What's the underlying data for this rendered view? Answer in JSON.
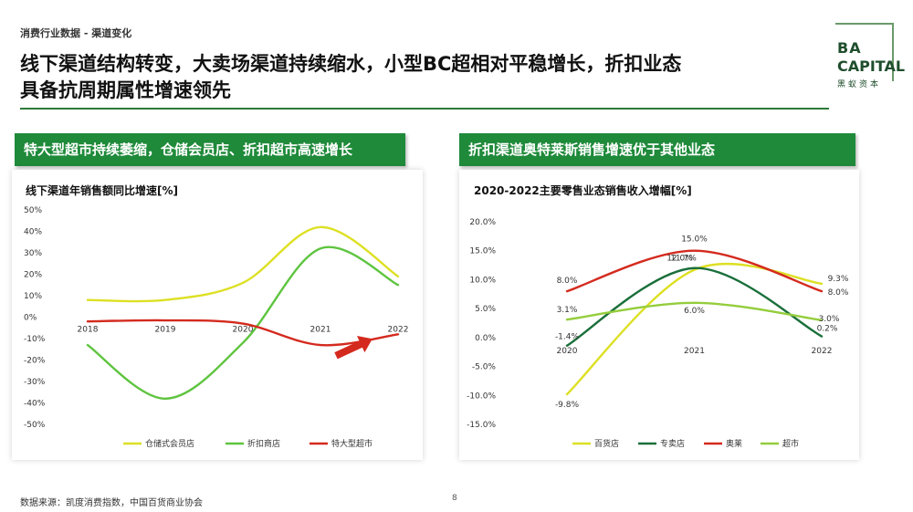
{
  "header": {
    "breadcrumb": "消费行业数据 - 渠道变化",
    "title_line1": "线下渠道结构转变，大卖场渠道持续缩水，小型BC超相对平稳增长，折扣业态",
    "title_line2": "具备抗周期属性增速领先"
  },
  "logo": {
    "line1": "BA",
    "line2": "CAPITAL",
    "line3": "黑蚁资本"
  },
  "left_panel": {
    "banner": "特大型超市持续萎缩，仓储会员店、折扣超市高速增长"
  },
  "right_panel": {
    "banner": "折扣渠道奥特莱斯销售增速优于其他业态"
  },
  "footer": {
    "source": "数据来源：凯度消费指数，中国百货商业协会",
    "page": "8"
  },
  "colors": {
    "banner_green": "#1f8a3a",
    "yellow": "#dde023",
    "green": "#5ec43f",
    "red": "#d42a1e",
    "dark_green": "#1a6f3a",
    "light_green": "#94cd3c",
    "arrow": "#d42a1e"
  },
  "chart_data": [
    {
      "type": "line",
      "title": "线下渠道年销售额同比增速[%]",
      "x": [
        "2018",
        "2019",
        "2020",
        "2021",
        "2022"
      ],
      "ylim": [
        -50,
        50
      ],
      "yticks": [
        "50%",
        "40%",
        "30%",
        "20%",
        "10%",
        "0%",
        "-10%",
        "-20%",
        "-30%",
        "-40%",
        "-50%"
      ],
      "grid": false,
      "legend": "bottom",
      "series": [
        {
          "name": "仓储式会员店",
          "color": "#dde023",
          "values": [
            8,
            8,
            16,
            42,
            19
          ]
        },
        {
          "name": "折扣商店",
          "color": "#5ec43f",
          "values": [
            -13,
            -38,
            -12,
            32,
            15
          ]
        },
        {
          "name": "特大型超市",
          "color": "#d42a1e",
          "values": [
            -2,
            -1.5,
            -3,
            -13,
            -8
          ]
        }
      ],
      "annotations": [
        "up-right red arrow"
      ]
    },
    {
      "type": "line",
      "title": "2020-2022主要零售业态销售收入增幅[%]",
      "x": [
        "2020",
        "2021",
        "2022"
      ],
      "ylim": [
        -15,
        20
      ],
      "yticks": [
        "20.0%",
        "15.0%",
        "10.0%",
        "5.0%",
        "0.0%",
        "-5.0%",
        "-10.0%",
        "-15.0%"
      ],
      "grid": false,
      "legend": "bottom",
      "series": [
        {
          "name": "百货店",
          "color": "#dde023",
          "values": [
            -9.8,
            11.7,
            9.3
          ],
          "labels": [
            "-9.8%",
            "11.7%",
            "9.3%"
          ]
        },
        {
          "name": "专卖店",
          "color": "#1a6f3a",
          "values": [
            -1.4,
            12.0,
            0.2
          ],
          "labels": [
            "-1.4%",
            "12.0%",
            "0.2%"
          ]
        },
        {
          "name": "奥莱",
          "color": "#d42a1e",
          "values": [
            8.0,
            15.0,
            8.0
          ],
          "labels": [
            "8.0%",
            "15.0%",
            "8.0%"
          ]
        },
        {
          "name": "超市",
          "color": "#94cd3c",
          "values": [
            3.1,
            6.0,
            3.0
          ],
          "labels": [
            "3.1%",
            "6.0%",
            "3.0%"
          ]
        }
      ]
    }
  ]
}
